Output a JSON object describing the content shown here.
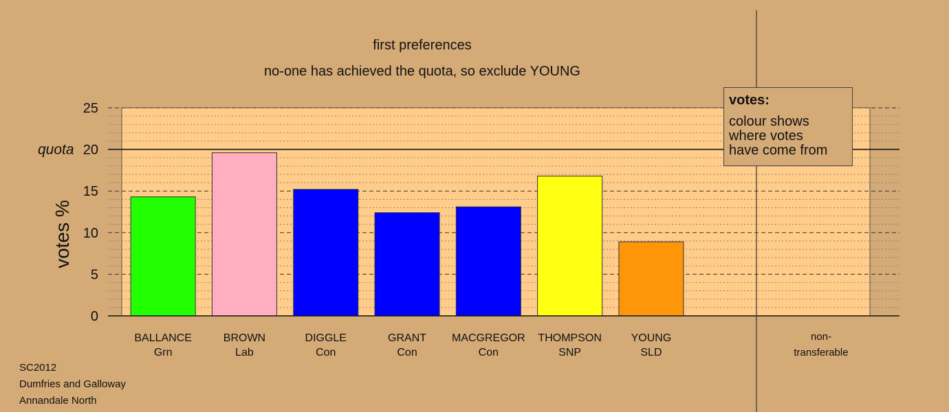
{
  "title": "first preferences",
  "subtitle": "no-one has achieved the quota, so exclude YOUNG",
  "legend": {
    "heading": "votes:",
    "text": "colour shows\nwhere votes\nhave come from"
  },
  "footer": [
    "SC2012",
    "Dumfries and Galloway",
    "Annandale North"
  ],
  "chart_data": {
    "type": "bar",
    "title": "first preferences",
    "subtitle": "no-one has achieved the quota, so exclude YOUNG",
    "ylabel": "votes %",
    "ylim": [
      0,
      25
    ],
    "yticks": [
      0,
      5,
      10,
      15,
      20,
      25
    ],
    "quota": {
      "label": "quota",
      "value": 20
    },
    "categories": [
      {
        "name": "BALLANCE",
        "party": "Grn",
        "value": 14.3,
        "color": "#22ff00"
      },
      {
        "name": "BROWN",
        "party": "Lab",
        "value": 19.6,
        "color": "#ffafc0"
      },
      {
        "name": "DIGGLE",
        "party": "Con",
        "value": 15.2,
        "color": "#0000ff"
      },
      {
        "name": "GRANT",
        "party": "Con",
        "value": 12.4,
        "color": "#0000ff"
      },
      {
        "name": "MACGREGOR",
        "party": "Con",
        "value": 13.1,
        "color": "#0000ff"
      },
      {
        "name": "THOMPSON",
        "party": "SNP",
        "value": 16.8,
        "color": "#ffff11"
      },
      {
        "name": "YOUNG",
        "party": "SLD",
        "value": 8.9,
        "color": "#ff9508"
      }
    ],
    "nontransferable": {
      "label_top": "non-",
      "label_bottom": "transferable",
      "value": 0
    },
    "grid": true,
    "colors": {
      "background": "#d4aa77",
      "plot_area": "#ffcc8a"
    }
  }
}
